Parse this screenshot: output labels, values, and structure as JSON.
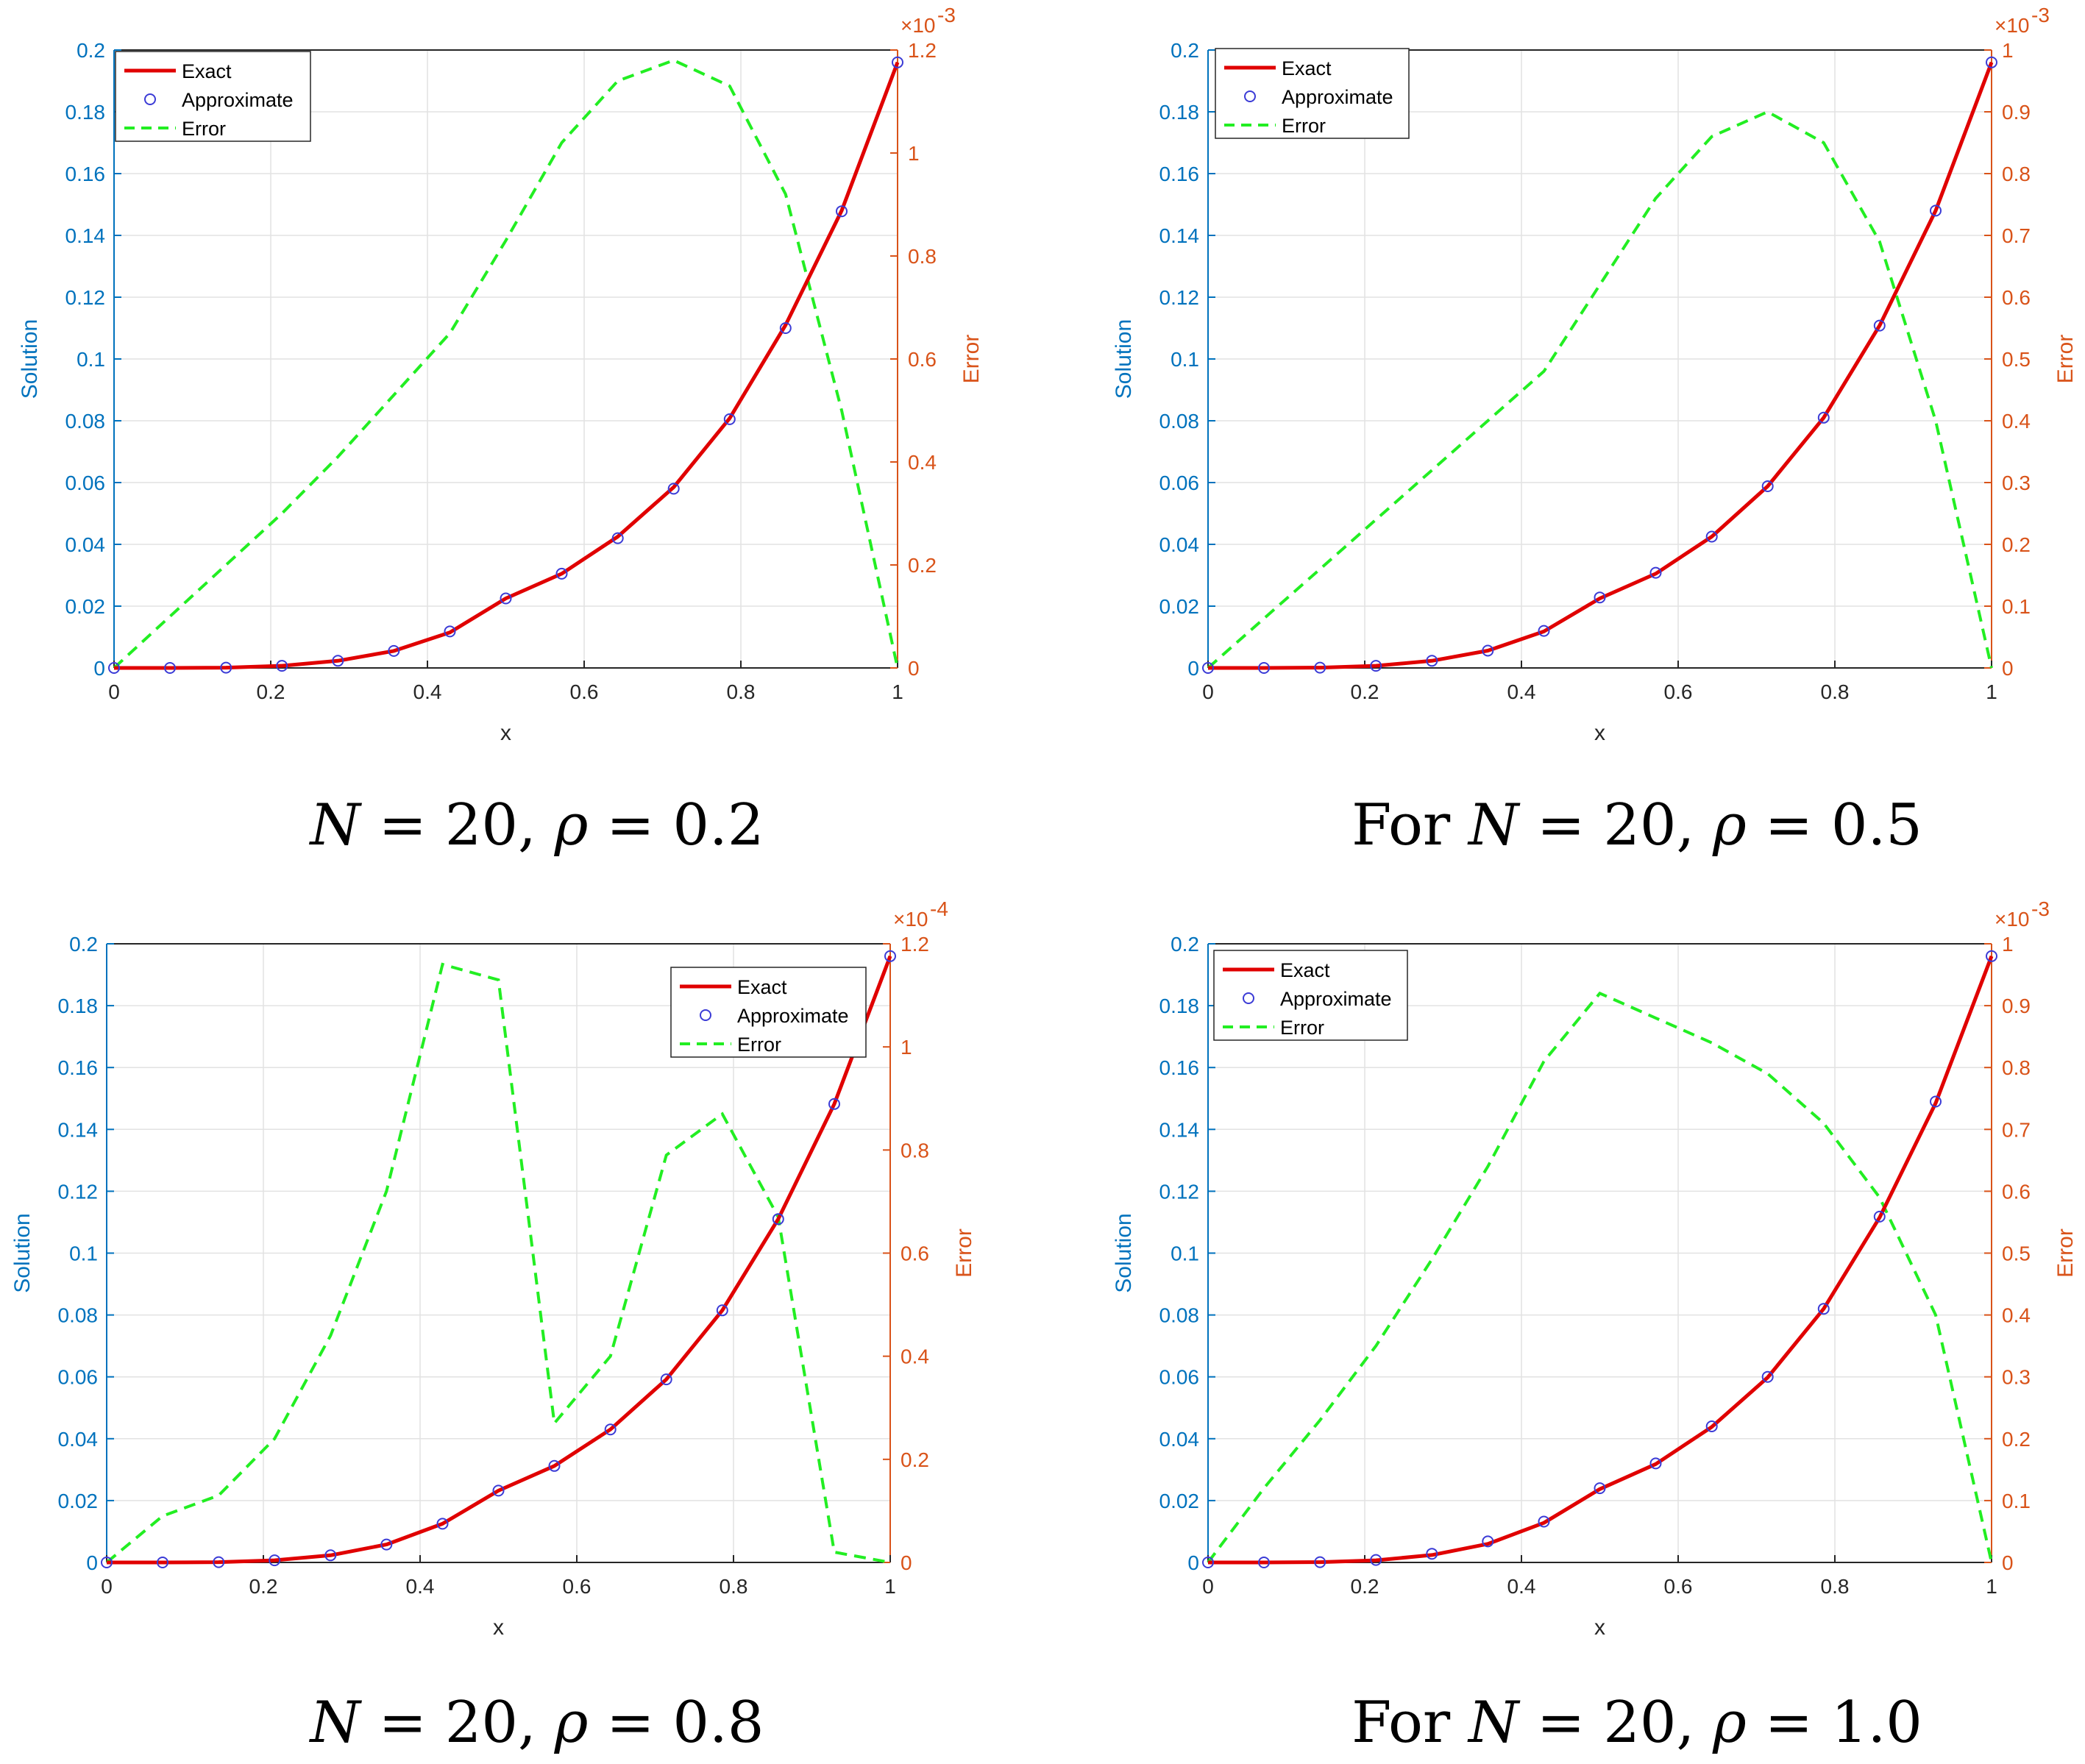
{
  "colors": {
    "left_axis": "#0072BD",
    "right_axis": "#D95319",
    "exact": "#E00000",
    "approx": "#3b3bd6",
    "error": "#22EE22",
    "grid": "#e2e2e2"
  },
  "legend_labels": {
    "exact": "Exact",
    "approx": "Approximate",
    "error": "Error"
  },
  "chart_data": [
    {
      "type": "line",
      "caption": {
        "prefix": "",
        "calN": "N",
        "rest": " = 20, ",
        "rho": "ρ",
        "eq": " = 0.2"
      },
      "xlabel": "x",
      "ylabel": "Solution",
      "ylabel_right": "Error",
      "xlim": [
        0,
        1
      ],
      "ylim": [
        0,
        0.2
      ],
      "ylim_right": [
        0,
        1.2
      ],
      "right_multiplier": "×10",
      "right_exponent": "-3",
      "x_ticks": [
        "0",
        "0.2",
        "0.4",
        "0.6",
        "0.8",
        "1"
      ],
      "y_ticks": [
        "0",
        "0.02",
        "0.04",
        "0.06",
        "0.08",
        "0.1",
        "0.12",
        "0.14",
        "0.16",
        "0.18",
        "0.2"
      ],
      "y_right_ticks": [
        "0",
        "0.2",
        "0.4",
        "0.6",
        "0.8",
        "1",
        "1.2"
      ],
      "legend_position": "top-left",
      "series": [
        {
          "name": "Exact",
          "x": [
            0,
            0.0714,
            0.1429,
            0.2143,
            0.2857,
            0.3571,
            0.4286,
            0.5,
            0.5714,
            0.6429,
            0.7143,
            0.7857,
            0.8571,
            0.9286,
            1
          ],
          "y": [
            0,
            0,
            0.0001,
            0.0007,
            0.0023,
            0.0055,
            0.0115,
            0.0225,
            0.0305,
            0.0425,
            0.0585,
            0.0808,
            0.111,
            0.148,
            0.196
          ]
        },
        {
          "name": "Approximate",
          "x": [
            0,
            0.0714,
            0.1429,
            0.2143,
            0.2857,
            0.3571,
            0.4286,
            0.5,
            0.5714,
            0.6429,
            0.7143,
            0.7857,
            0.8571,
            0.9286,
            1
          ],
          "y": [
            0,
            0,
            0.0001,
            0.0007,
            0.0023,
            0.0055,
            0.0118,
            0.0225,
            0.0305,
            0.042,
            0.058,
            0.0805,
            0.11,
            0.1478,
            0.196
          ]
        },
        {
          "name": "Error",
          "x": [
            0,
            0.0714,
            0.1429,
            0.2143,
            0.2857,
            0.3571,
            0.4286,
            0.5,
            0.5714,
            0.6429,
            0.7143,
            0.7857,
            0.8571,
            0.9286,
            1
          ],
          "y": [
            0,
            0.1,
            0.2,
            0.3,
            0.41,
            0.53,
            0.65,
            0.83,
            1.02,
            1.14,
            1.18,
            1.13,
            0.92,
            0.5,
            0
          ]
        }
      ]
    },
    {
      "type": "line",
      "caption": {
        "prefix": "For ",
        "calN": "N",
        "rest": " = 20, ",
        "rho": "ρ",
        "eq": " = 0.5"
      },
      "xlabel": "x",
      "ylabel": "Solution",
      "ylabel_right": "Error",
      "xlim": [
        0,
        1
      ],
      "ylim": [
        0,
        0.2
      ],
      "ylim_right": [
        0,
        1.0
      ],
      "right_multiplier": "×10",
      "right_exponent": "-3",
      "x_ticks": [
        "0",
        "0.2",
        "0.4",
        "0.6",
        "0.8",
        "1"
      ],
      "y_ticks": [
        "0",
        "0.02",
        "0.04",
        "0.06",
        "0.08",
        "0.1",
        "0.12",
        "0.14",
        "0.16",
        "0.18",
        "0.2"
      ],
      "y_right_ticks": [
        "0",
        "0.1",
        "0.2",
        "0.3",
        "0.4",
        "0.5",
        "0.6",
        "0.7",
        "0.8",
        "0.9",
        "1"
      ],
      "legend_position": "top-left",
      "series": [
        {
          "name": "Exact",
          "x": [
            0,
            0.0714,
            0.1429,
            0.2143,
            0.2857,
            0.3571,
            0.4286,
            0.5,
            0.5714,
            0.6429,
            0.7143,
            0.7857,
            0.8571,
            0.9286,
            1
          ],
          "y": [
            0,
            0,
            0.0001,
            0.0007,
            0.0023,
            0.0056,
            0.0118,
            0.0225,
            0.0305,
            0.0425,
            0.0588,
            0.081,
            0.1108,
            0.148,
            0.196
          ]
        },
        {
          "name": "Approximate",
          "x": [
            0,
            0.0714,
            0.1429,
            0.2143,
            0.2857,
            0.3571,
            0.4286,
            0.5,
            0.5714,
            0.6429,
            0.7143,
            0.7857,
            0.8571,
            0.9286,
            1
          ],
          "y": [
            0,
            0,
            0.0001,
            0.0007,
            0.0023,
            0.0056,
            0.012,
            0.0228,
            0.0308,
            0.0425,
            0.0588,
            0.081,
            0.1108,
            0.148,
            0.196
          ]
        },
        {
          "name": "Error",
          "x": [
            0,
            0.0714,
            0.1429,
            0.2143,
            0.2857,
            0.3571,
            0.4286,
            0.5,
            0.5714,
            0.6429,
            0.7143,
            0.7857,
            0.8571,
            0.9286,
            1
          ],
          "y": [
            0,
            0.08,
            0.16,
            0.24,
            0.32,
            0.4,
            0.48,
            0.62,
            0.76,
            0.86,
            0.9,
            0.85,
            0.69,
            0.4,
            0
          ]
        }
      ]
    },
    {
      "type": "line",
      "caption": {
        "prefix": "",
        "calN": "N",
        "rest": " = 20, ",
        "rho": "ρ",
        "eq": " = 0.8"
      },
      "xlabel": "x",
      "ylabel": "Solution",
      "ylabel_right": "Error",
      "xlim": [
        0,
        1
      ],
      "ylim": [
        0,
        0.2
      ],
      "ylim_right": [
        0,
        1.2
      ],
      "right_multiplier": "×10",
      "right_exponent": "-4",
      "x_ticks": [
        "0",
        "0.2",
        "0.4",
        "0.6",
        "0.8",
        "1"
      ],
      "y_ticks": [
        "0",
        "0.02",
        "0.04",
        "0.06",
        "0.08",
        "0.1",
        "0.12",
        "0.14",
        "0.16",
        "0.18",
        "0.2"
      ],
      "y_right_ticks": [
        "0",
        "0.2",
        "0.4",
        "0.6",
        "0.8",
        "1",
        "1.2"
      ],
      "legend_position": "top-right",
      "series": [
        {
          "name": "Exact",
          "x": [
            0,
            0.0714,
            0.1429,
            0.2143,
            0.2857,
            0.3571,
            0.4286,
            0.5,
            0.5714,
            0.6429,
            0.7143,
            0.7857,
            0.8571,
            0.9286,
            1
          ],
          "y": [
            0,
            0,
            0.0001,
            0.0007,
            0.0023,
            0.0058,
            0.0125,
            0.0232,
            0.0312,
            0.043,
            0.0592,
            0.0815,
            0.111,
            0.1482,
            0.196
          ]
        },
        {
          "name": "Approximate",
          "x": [
            0,
            0.0714,
            0.1429,
            0.2143,
            0.2857,
            0.3571,
            0.4286,
            0.5,
            0.5714,
            0.6429,
            0.7143,
            0.7857,
            0.8571,
            0.9286,
            1
          ],
          "y": [
            0,
            0,
            0.0001,
            0.0007,
            0.0023,
            0.0058,
            0.0125,
            0.0232,
            0.0312,
            0.043,
            0.0592,
            0.0815,
            0.111,
            0.1482,
            0.196
          ]
        },
        {
          "name": "Error",
          "x": [
            0,
            0.0714,
            0.1429,
            0.2143,
            0.2857,
            0.3571,
            0.4286,
            0.5,
            0.5714,
            0.6429,
            0.7143,
            0.7857,
            0.8571,
            0.9286,
            1
          ],
          "y": [
            0,
            0.09,
            0.13,
            0.24,
            0.44,
            0.72,
            1.16,
            1.13,
            0.27,
            0.4,
            0.79,
            0.87,
            0.67,
            0.02,
            0
          ]
        }
      ]
    },
    {
      "type": "line",
      "caption": {
        "prefix": "For ",
        "calN": "N",
        "rest": " = 20, ",
        "rho": "ρ",
        "eq": " = 1.0"
      },
      "xlabel": "x",
      "ylabel": "Solution",
      "ylabel_right": "Error",
      "xlim": [
        0,
        1
      ],
      "ylim": [
        0,
        0.2
      ],
      "ylim_right": [
        0,
        1.0
      ],
      "right_multiplier": "×10",
      "right_exponent": "-3",
      "x_ticks": [
        "0",
        "0.2",
        "0.4",
        "0.6",
        "0.8",
        "1"
      ],
      "y_ticks": [
        "0",
        "0.02",
        "0.04",
        "0.06",
        "0.08",
        "0.1",
        "0.12",
        "0.14",
        "0.16",
        "0.18",
        "0.2"
      ],
      "y_right_ticks": [
        "0",
        "0.1",
        "0.2",
        "0.3",
        "0.4",
        "0.5",
        "0.6",
        "0.7",
        "0.8",
        "0.9",
        "1"
      ],
      "legend_position": "top-left",
      "series": [
        {
          "name": "Exact",
          "x": [
            0,
            0.0714,
            0.1429,
            0.2143,
            0.2857,
            0.3571,
            0.4286,
            0.5,
            0.5714,
            0.6429,
            0.7143,
            0.7857,
            0.8571,
            0.9286,
            1
          ],
          "y": [
            0,
            0,
            0.0001,
            0.0007,
            0.0024,
            0.006,
            0.0128,
            0.0237,
            0.0318,
            0.0438,
            0.0598,
            0.082,
            0.1115,
            0.1485,
            0.196
          ]
        },
        {
          "name": "Approximate",
          "x": [
            0,
            0.0714,
            0.1429,
            0.2143,
            0.2857,
            0.3571,
            0.4286,
            0.5,
            0.5714,
            0.6429,
            0.7143,
            0.7857,
            0.8571,
            0.9286,
            1
          ],
          "y": [
            0,
            0,
            0.0001,
            0.0008,
            0.0028,
            0.0068,
            0.0132,
            0.024,
            0.032,
            0.044,
            0.06,
            0.082,
            0.1118,
            0.149,
            0.196
          ]
        },
        {
          "name": "Error",
          "x": [
            0,
            0.0714,
            0.1429,
            0.2143,
            0.2857,
            0.3571,
            0.4286,
            0.5,
            0.5714,
            0.6429,
            0.7143,
            0.7857,
            0.8571,
            0.9286,
            1
          ],
          "y": [
            0,
            0.12,
            0.23,
            0.35,
            0.49,
            0.64,
            0.81,
            0.92,
            0.88,
            0.84,
            0.79,
            0.71,
            0.59,
            0.4,
            0
          ]
        }
      ]
    }
  ]
}
